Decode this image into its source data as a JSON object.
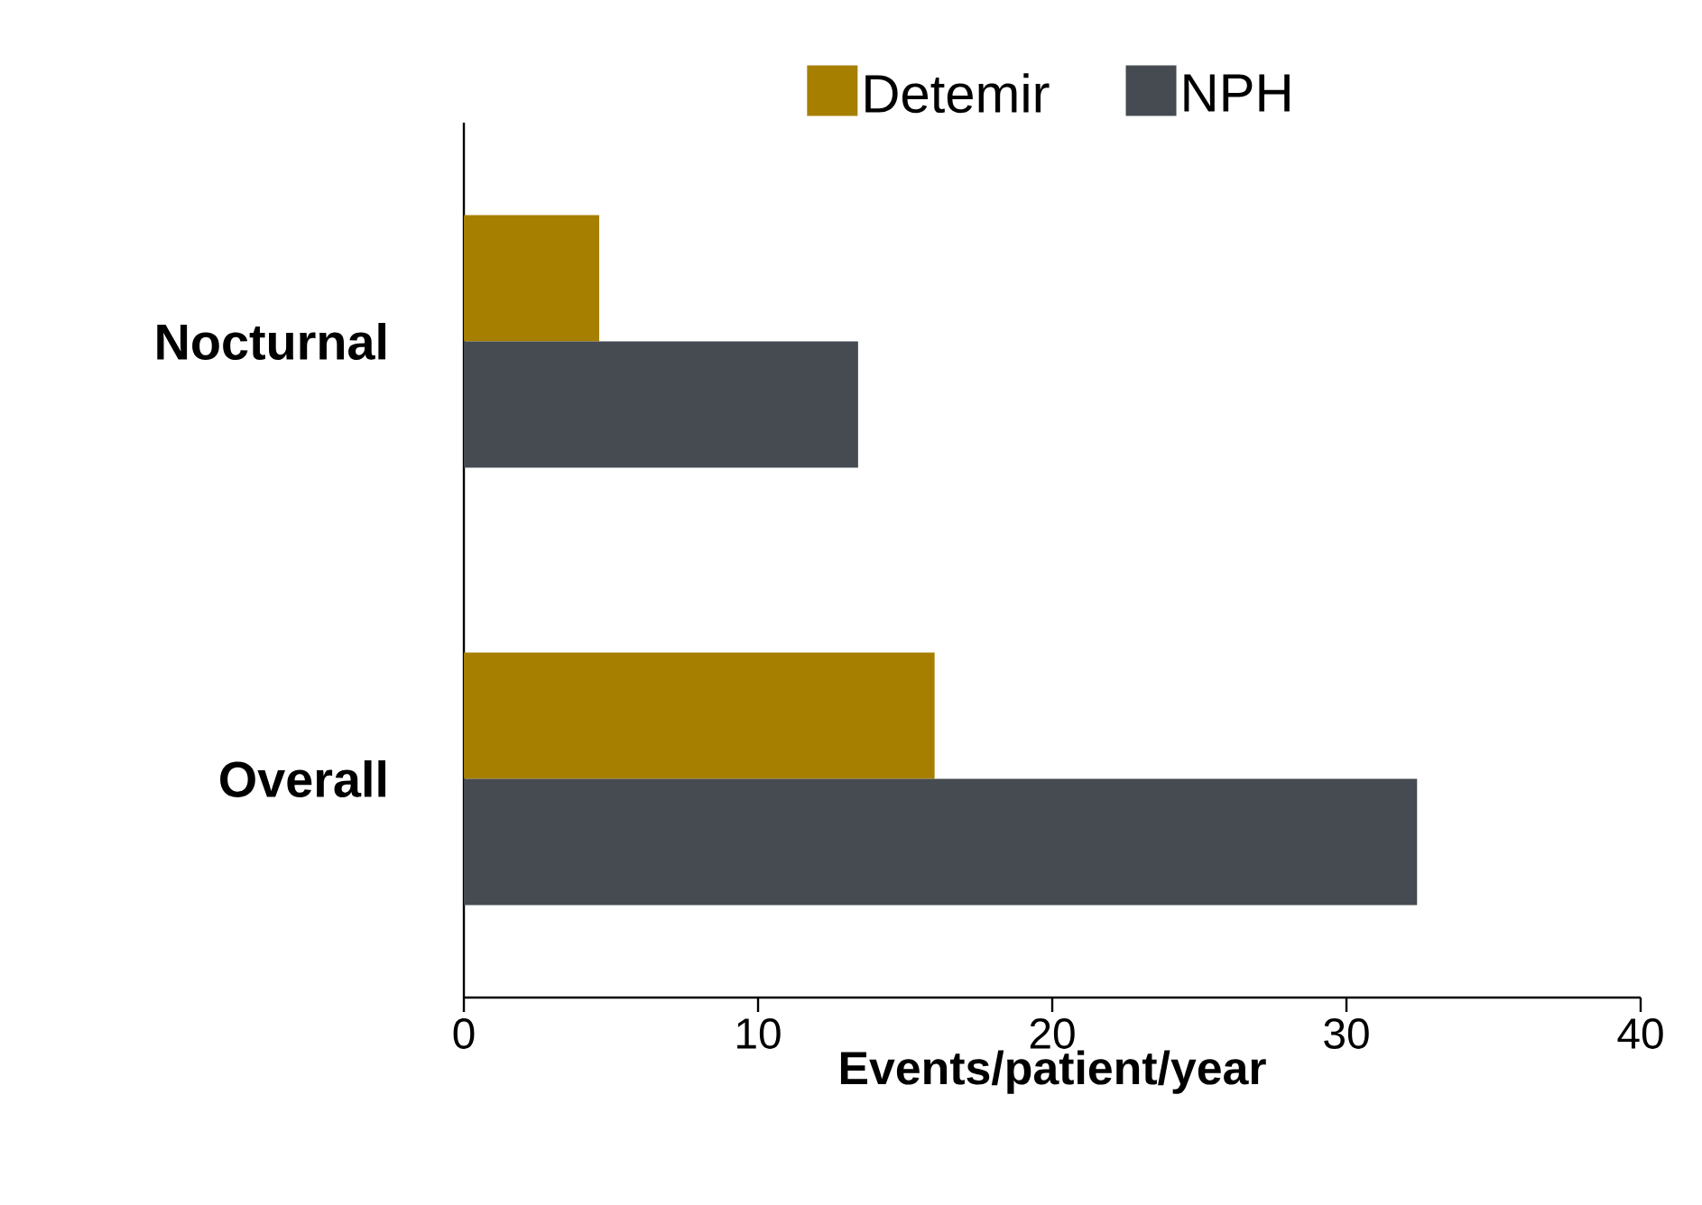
{
  "chart_data": {
    "type": "bar",
    "orientation": "horizontal",
    "categories": [
      "Nocturnal",
      "Overall"
    ],
    "series": [
      {
        "name": "Detemir",
        "color": "#a67f00",
        "values": [
          4.6,
          16.0
        ]
      },
      {
        "name": "NPH",
        "color": "#454b51",
        "values": [
          13.4,
          32.4
        ]
      }
    ],
    "xlabel": "Events/patient/year",
    "xlim": [
      0,
      40
    ],
    "xticks": [
      0,
      10,
      20,
      30,
      40
    ],
    "legend": "top",
    "grid": false
  }
}
